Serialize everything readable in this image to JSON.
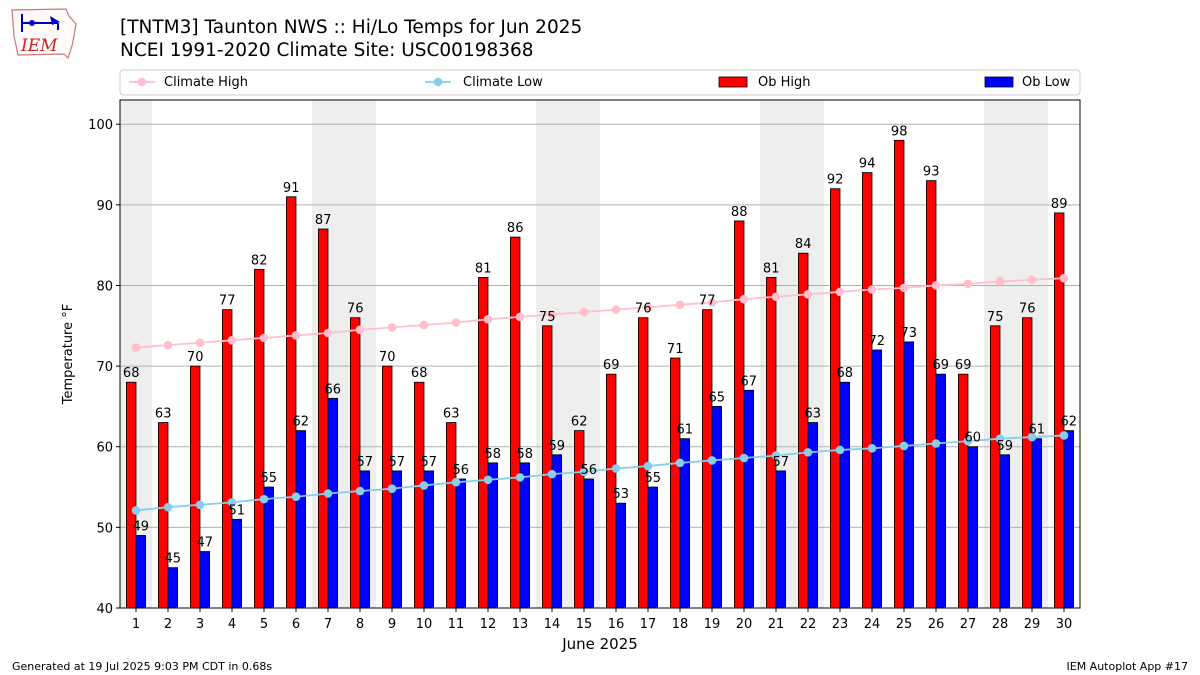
{
  "header": {
    "title_line1": "[TNTM3] Taunton NWS :: Hi/Lo Temps for Jun 2025",
    "title_line2": "NCEI 1991-2020 Climate Site: USC00198368",
    "logo_text": "IEM"
  },
  "footer": {
    "generated": "Generated at 19 Jul 2025 9:03 PM CDT in 0.68s",
    "app": "IEM Autoplot App #17"
  },
  "colors": {
    "ob_high": "#ff0000",
    "ob_low": "#0000ff",
    "climate_high": "#ffc0cb",
    "climate_low": "#87ceeb",
    "weekend_band": "#eeeeee",
    "grid": "#b0b0b0"
  },
  "chart_data": {
    "type": "bar",
    "title": "[TNTM3] Taunton NWS :: Hi/Lo Temps for Jun 2025",
    "subtitle": "NCEI 1991-2020 Climate Site: USC00198368",
    "xlabel": "June 2025",
    "ylabel": "Temperature °F",
    "ylim": [
      40,
      103
    ],
    "yticks": [
      40,
      50,
      60,
      70,
      80,
      90,
      100
    ],
    "grid": true,
    "legend_position": "top",
    "categories": [
      "1",
      "2",
      "3",
      "4",
      "5",
      "6",
      "7",
      "8",
      "9",
      "10",
      "11",
      "12",
      "13",
      "14",
      "15",
      "16",
      "17",
      "18",
      "19",
      "20",
      "21",
      "22",
      "23",
      "24",
      "25",
      "26",
      "27",
      "28",
      "29",
      "30"
    ],
    "series": [
      {
        "name": "Ob High",
        "kind": "bar",
        "color": "#ff0000",
        "values": [
          68,
          63,
          70,
          77,
          82,
          91,
          87,
          76,
          70,
          68,
          63,
          81,
          86,
          75,
          62,
          69,
          76,
          71,
          77,
          88,
          81,
          84,
          92,
          94,
          98,
          93,
          69,
          75,
          76,
          89
        ]
      },
      {
        "name": "Ob Low",
        "kind": "bar",
        "color": "#0000ff",
        "values": [
          49,
          45,
          47,
          51,
          55,
          62,
          66,
          57,
          57,
          57,
          56,
          58,
          58,
          59,
          56,
          53,
          55,
          61,
          65,
          67,
          57,
          63,
          68,
          72,
          73,
          69,
          60,
          59,
          61,
          62
        ]
      },
      {
        "name": "Climate High",
        "kind": "line",
        "color": "#ffc0cb",
        "values": [
          72.3,
          72.6,
          72.9,
          73.2,
          73.5,
          73.8,
          74.1,
          74.5,
          74.8,
          75.1,
          75.4,
          75.8,
          76.1,
          76.4,
          76.7,
          77.0,
          77.3,
          77.6,
          77.9,
          78.3,
          78.6,
          78.9,
          79.2,
          79.5,
          79.7,
          80.0,
          80.2,
          80.5,
          80.7,
          80.9
        ]
      },
      {
        "name": "Climate Low",
        "kind": "line",
        "color": "#87ceeb",
        "values": [
          52.1,
          52.5,
          52.8,
          53.1,
          53.5,
          53.8,
          54.2,
          54.5,
          54.8,
          55.2,
          55.6,
          55.9,
          56.2,
          56.6,
          56.9,
          57.3,
          57.6,
          58.0,
          58.3,
          58.6,
          58.9,
          59.3,
          59.6,
          59.8,
          60.1,
          60.4,
          60.7,
          61.0,
          61.2,
          61.4
        ]
      }
    ],
    "shaded_days": [
      "1",
      "7",
      "8",
      "14",
      "15",
      "21",
      "22",
      "28",
      "29"
    ]
  }
}
